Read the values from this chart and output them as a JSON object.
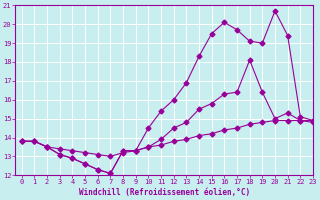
{
  "xlabel": "Windchill (Refroidissement éolien,°C)",
  "ylabel": "",
  "xlim": [
    -0.5,
    23
  ],
  "ylim": [
    12,
    21
  ],
  "xticks": [
    0,
    1,
    2,
    3,
    4,
    5,
    6,
    7,
    8,
    9,
    10,
    11,
    12,
    13,
    14,
    15,
    16,
    17,
    18,
    19,
    20,
    21,
    22,
    23
  ],
  "yticks": [
    12,
    13,
    14,
    15,
    16,
    17,
    18,
    19,
    20,
    21
  ],
  "bg_color": "#c8eef0",
  "line_color": "#990099",
  "grid_color": "#aadddd",
  "line1_x": [
    0,
    1,
    2,
    3,
    4,
    5,
    6,
    7,
    8,
    9,
    10,
    11,
    12,
    13,
    14,
    15,
    16,
    17,
    18,
    19,
    20,
    21,
    22,
    23
  ],
  "line1_y": [
    13.8,
    13.8,
    13.5,
    13.4,
    13.3,
    13.2,
    13.1,
    13.0,
    13.2,
    13.3,
    13.5,
    13.6,
    13.8,
    13.9,
    14.1,
    14.2,
    14.4,
    14.5,
    14.7,
    14.8,
    14.9,
    14.9,
    14.9,
    14.9
  ],
  "line2_x": [
    0,
    1,
    2,
    3,
    4,
    5,
    6,
    7,
    8,
    9,
    10,
    11,
    12,
    13,
    14,
    15,
    16,
    17,
    18,
    19,
    20,
    21,
    22,
    23
  ],
  "line2_y": [
    13.8,
    13.8,
    13.5,
    13.1,
    12.9,
    12.6,
    12.3,
    12.1,
    13.3,
    13.3,
    13.5,
    13.9,
    14.5,
    14.8,
    15.5,
    15.8,
    16.3,
    16.4,
    18.1,
    16.4,
    15.0,
    15.3,
    14.9,
    14.8
  ],
  "line3_x": [
    0,
    1,
    2,
    3,
    4,
    5,
    6,
    7,
    8,
    9,
    10,
    11,
    12,
    13,
    14,
    15,
    16,
    17,
    18,
    19,
    20,
    21,
    22,
    23
  ],
  "line3_y": [
    13.8,
    13.8,
    13.5,
    13.1,
    12.9,
    12.6,
    12.3,
    12.1,
    13.3,
    13.3,
    14.5,
    15.4,
    16.0,
    16.9,
    18.3,
    19.5,
    20.1,
    19.7,
    19.1,
    19.0,
    20.7,
    19.4,
    15.1,
    14.9
  ],
  "marker": "D",
  "markersize": 2.5
}
